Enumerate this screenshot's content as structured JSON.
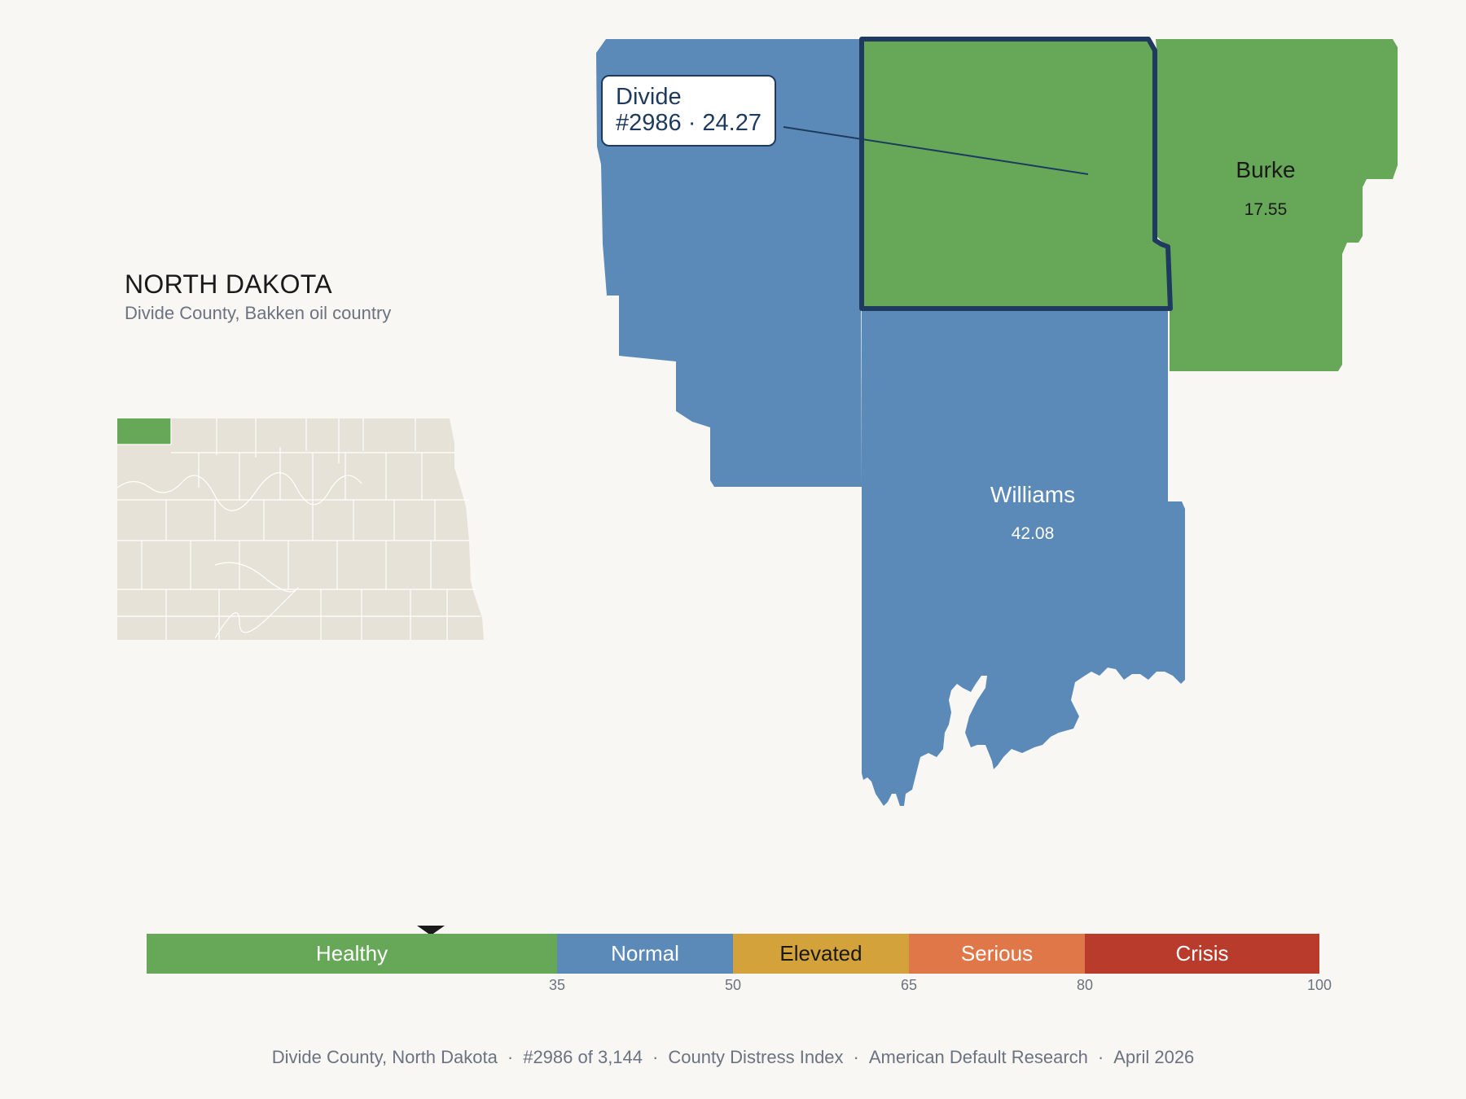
{
  "state": {
    "title": "NORTH DAKOTA",
    "subtitle": "Divide County, Bakken oil country"
  },
  "counties": [
    {
      "name": "Divide",
      "rank": "#2986",
      "score": 24.27,
      "category": "Healthy",
      "color": "#66a857",
      "highlighted": true
    },
    {
      "name": "Burke",
      "score": "17.55",
      "category": "Healthy",
      "color": "#66a857"
    },
    {
      "name": "Williams",
      "score": "42.08",
      "category": "Normal",
      "color": "#5b8ab9"
    },
    {
      "name": "",
      "category": "Normal",
      "color": "#5b8ab9"
    }
  ],
  "callout": {
    "line1": "Divide",
    "line2": "#2986 · 24.27"
  },
  "legend": {
    "segments": [
      {
        "label": "Healthy",
        "min": 0,
        "max": 35,
        "color": "#66a857",
        "text_color": "#ffffff"
      },
      {
        "label": "Normal",
        "min": 35,
        "max": 50,
        "color": "#5b8ab9",
        "text_color": "#ffffff"
      },
      {
        "label": "Elevated",
        "min": 50,
        "max": 65,
        "color": "#d4a23a",
        "text_color": "#1a1a1a"
      },
      {
        "label": "Serious",
        "min": 65,
        "max": 80,
        "color": "#e07748",
        "text_color": "#ffffff"
      },
      {
        "label": "Crisis",
        "min": 80,
        "max": 100,
        "color": "#b83b2c",
        "text_color": "#ffffff"
      }
    ],
    "ticks": [
      "35",
      "50",
      "65",
      "80",
      "100"
    ],
    "marker_value": 24.27
  },
  "footer": {
    "items": [
      "Divide County, North Dakota",
      "#2986 of 3,144",
      "County Distress Index",
      "American Default Research",
      "April 2026"
    ]
  },
  "inset": {
    "base_color": "#e7e2d8",
    "highlight_color": "#66a857",
    "highlight_name": "Divide"
  }
}
